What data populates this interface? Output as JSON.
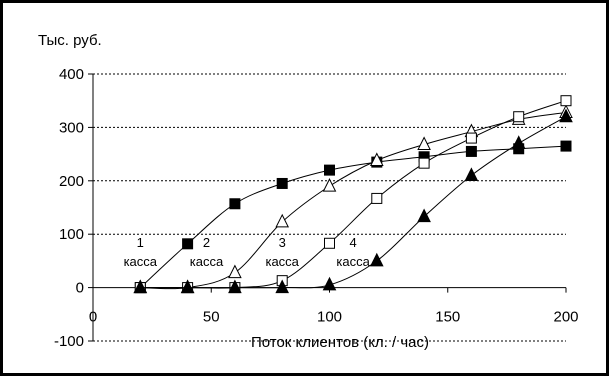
{
  "chart_data": {
    "type": "line",
    "ylabel": "Тыс. руб.",
    "xlabel": "Поток клиентов (кл. / час)",
    "xlim": [
      0,
      200
    ],
    "ylim": [
      -100,
      400
    ],
    "x_ticks": [
      "0",
      "50",
      "100",
      "150",
      "200"
    ],
    "y_ticks": [
      "400",
      "300",
      "200",
      "100",
      "0",
      "-100"
    ],
    "grid": "horizontal dashed",
    "annotations": [
      {
        "number": "1",
        "word": "касса",
        "x": 20
      },
      {
        "number": "2",
        "word": "касса",
        "x": 48
      },
      {
        "number": "3",
        "word": "касса",
        "x": 80
      },
      {
        "number": "4",
        "word": "касса",
        "x": 110
      }
    ],
    "series": [
      {
        "marker": "filled-square",
        "x": [
          20,
          40,
          60,
          80,
          100,
          120,
          140,
          160,
          180,
          200
        ],
        "values": [
          0,
          82,
          157,
          195,
          220,
          235,
          245,
          255,
          260,
          265
        ]
      },
      {
        "marker": "open-triangle",
        "x": [
          20,
          40,
          60,
          80,
          100,
          120,
          140,
          160,
          180,
          200
        ],
        "values": [
          0,
          0,
          28,
          123,
          190,
          238,
          268,
          292,
          315,
          328
        ]
      },
      {
        "marker": "open-square",
        "x": [
          20,
          40,
          60,
          80,
          100,
          120,
          140,
          160,
          180,
          200
        ],
        "values": [
          0,
          0,
          0,
          13,
          83,
          167,
          233,
          280,
          320,
          350
        ]
      },
      {
        "marker": "filled-triangle",
        "x": [
          20,
          40,
          60,
          80,
          100,
          120,
          140,
          160,
          180,
          200
        ],
        "values": [
          0,
          0,
          0,
          0,
          5,
          50,
          133,
          210,
          270,
          320
        ]
      }
    ]
  }
}
